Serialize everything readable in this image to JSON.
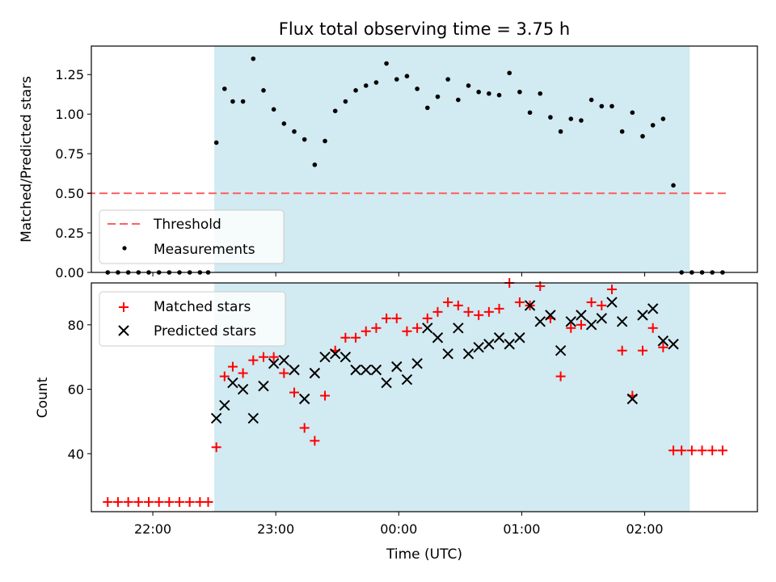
{
  "chart_data": [
    {
      "type": "scatter",
      "title": "Flux total observing time = 3.75 h",
      "ylabel": "Matched/Predicted stars",
      "ylim": [
        0,
        1.43
      ],
      "yticks": [
        "0.00",
        "0.25",
        "0.50",
        "0.75",
        "1.00",
        "1.25"
      ],
      "xlim": [
        "21:30",
        "02:55"
      ],
      "shaded_interval": [
        "22:30",
        "02:22"
      ],
      "shade_color": "#add8e6",
      "grid": false,
      "legend_placement": "lower left",
      "threshold": {
        "name": "Threshold",
        "y": 0.5,
        "x_range": [
          "21:28",
          "02:40"
        ],
        "color": "#ff6060",
        "style": "dashed"
      },
      "series": [
        {
          "name": "Measurements",
          "marker": "dot",
          "color": "#000000",
          "x": [
            "21:38",
            "21:43",
            "21:48",
            "21:53",
            "21:58",
            "22:03",
            "22:08",
            "22:13",
            "22:18",
            "22:23",
            "22:27",
            "22:31",
            "22:35",
            "22:39",
            "22:44",
            "22:49",
            "22:54",
            "22:59",
            "23:04",
            "23:09",
            "23:14",
            "23:19",
            "23:24",
            "23:29",
            "23:34",
            "23:39",
            "23:44",
            "23:49",
            "23:54",
            "23:59",
            "24:04",
            "24:09",
            "24:14",
            "24:19",
            "24:24",
            "24:29",
            "24:34",
            "24:39",
            "24:44",
            "24:49",
            "24:54",
            "24:59",
            "25:04",
            "25:09",
            "25:14",
            "25:19",
            "25:24",
            "25:29",
            "25:34",
            "25:39",
            "25:44",
            "25:49",
            "25:54",
            "25:59",
            "26:04",
            "26:09",
            "26:14",
            "26:18",
            "26:23",
            "26:28",
            "26:33",
            "26:38"
          ],
          "y": [
            0,
            0,
            0,
            0,
            0,
            0,
            0,
            0,
            0,
            0,
            0,
            0.82,
            1.16,
            1.08,
            1.08,
            1.35,
            1.15,
            1.03,
            0.94,
            0.89,
            0.84,
            0.68,
            0.83,
            1.02,
            1.08,
            1.15,
            1.18,
            1.2,
            1.32,
            1.22,
            1.24,
            1.16,
            1.04,
            1.11,
            1.22,
            1.09,
            1.18,
            1.14,
            1.13,
            1.12,
            1.26,
            1.14,
            1.01,
            1.13,
            0.98,
            0.89,
            0.97,
            0.96,
            1.09,
            1.05,
            1.05,
            0.89,
            1.01,
            0.86,
            0.93,
            0.97,
            0.55,
            0,
            0,
            0,
            0,
            0
          ]
        }
      ]
    },
    {
      "type": "scatter",
      "xlabel": "Time (UTC)",
      "ylabel": "Count",
      "ylim": [
        22,
        93
      ],
      "yticks": [
        "40",
        "60",
        "80"
      ],
      "xticks": [
        "22:00",
        "23:00",
        "00:00",
        "01:00",
        "02:00"
      ],
      "xlim": [
        "21:30",
        "02:55"
      ],
      "shaded_interval": [
        "22:30",
        "02:22"
      ],
      "shade_color": "#add8e6",
      "grid": false,
      "legend_placement": "upper left",
      "series": [
        {
          "name": "Matched stars",
          "marker": "plus",
          "color": "#ff0000",
          "x": [
            "21:38",
            "21:43",
            "21:48",
            "21:53",
            "21:58",
            "22:03",
            "22:08",
            "22:13",
            "22:18",
            "22:23",
            "22:27",
            "22:31",
            "22:35",
            "22:39",
            "22:44",
            "22:49",
            "22:54",
            "22:59",
            "23:04",
            "23:09",
            "23:14",
            "23:19",
            "23:24",
            "23:29",
            "23:34",
            "23:39",
            "23:44",
            "23:49",
            "23:54",
            "23:59",
            "24:04",
            "24:09",
            "24:14",
            "24:19",
            "24:24",
            "24:29",
            "24:34",
            "24:39",
            "24:44",
            "24:49",
            "24:54",
            "24:59",
            "25:04",
            "25:09",
            "25:14",
            "25:19",
            "25:24",
            "25:29",
            "25:34",
            "25:39",
            "25:44",
            "25:49",
            "25:54",
            "25:59",
            "26:04",
            "26:09",
            "26:14",
            "26:18",
            "26:23",
            "26:28",
            "26:33",
            "26:38"
          ],
          "y": [
            25,
            25,
            25,
            25,
            25,
            25,
            25,
            25,
            25,
            25,
            25,
            42,
            64,
            67,
            65,
            69,
            70,
            70,
            65,
            59,
            48,
            44,
            58,
            72,
            76,
            76,
            78,
            79,
            82,
            82,
            78,
            79,
            82,
            84,
            87,
            86,
            84,
            83,
            84,
            85,
            93,
            87,
            86,
            92,
            82,
            64,
            79,
            80,
            87,
            86,
            91,
            72,
            58,
            72,
            79,
            73,
            41,
            41,
            41,
            41,
            41,
            41
          ]
        },
        {
          "name": "Predicted stars",
          "marker": "x",
          "color": "#000000",
          "x": [
            "22:31",
            "22:35",
            "22:39",
            "22:44",
            "22:49",
            "22:54",
            "22:59",
            "23:04",
            "23:09",
            "23:14",
            "23:19",
            "23:24",
            "23:29",
            "23:34",
            "23:39",
            "23:44",
            "23:49",
            "23:54",
            "23:59",
            "24:04",
            "24:09",
            "24:14",
            "24:19",
            "24:24",
            "24:29",
            "24:34",
            "24:39",
            "24:44",
            "24:49",
            "24:54",
            "24:59",
            "25:04",
            "25:09",
            "25:14",
            "25:19",
            "25:24",
            "25:29",
            "25:34",
            "25:39",
            "25:44",
            "25:49",
            "25:54",
            "25:59",
            "26:04",
            "26:09",
            "26:14"
          ],
          "y": [
            51,
            55,
            62,
            60,
            51,
            61,
            68,
            69,
            66,
            57,
            65,
            70,
            71,
            70,
            66,
            66,
            66,
            62,
            67,
            63,
            68,
            79,
            76,
            71,
            79,
            71,
            73,
            74,
            76,
            74,
            76,
            86,
            81,
            83,
            72,
            81,
            83,
            80,
            82,
            87,
            81,
            57,
            83,
            85,
            75,
            74
          ]
        }
      ]
    }
  ]
}
